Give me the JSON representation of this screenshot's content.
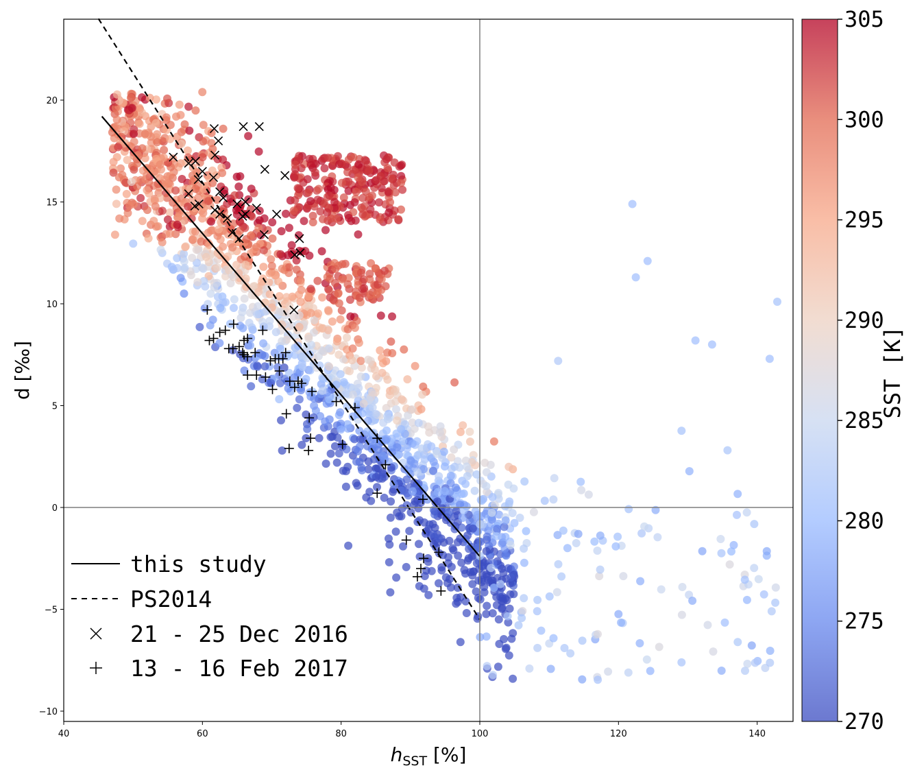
{
  "chart_data": {
    "type": "scatter",
    "xlabel_main": "h",
    "xlabel_sub": "SST",
    "xlabel_unit": " [%]",
    "ylabel": "d [‰]",
    "xlim": [
      40,
      145
    ],
    "ylim": [
      -10.5,
      24
    ],
    "xticks": [
      40,
      60,
      80,
      100,
      120,
      140
    ],
    "yticks": [
      -10,
      -5,
      0,
      5,
      10,
      15,
      20
    ],
    "reference_lines": {
      "x": 100,
      "y": 0
    },
    "grid": false,
    "colorbar": {
      "label": "SST [K]",
      "range": [
        270,
        305
      ],
      "ticks": [
        270,
        275,
        280,
        285,
        290,
        295,
        300,
        305
      ],
      "colormap": "coolwarm",
      "colors": [
        "#3b4cc0",
        "#6788ee",
        "#9abbff",
        "#c9d7f0",
        "#edd1c2",
        "#f7a889",
        "#e26952",
        "#b40426"
      ]
    },
    "fit_lines": [
      {
        "name": "this study",
        "style": "solid",
        "x": [
          45.5,
          100
        ],
        "y": [
          19.2,
          -2.4
        ]
      },
      {
        "name": "PS2014",
        "style": "dashed",
        "x": [
          45,
          100
        ],
        "y": [
          24,
          -5.5
        ]
      }
    ],
    "legend": {
      "placement": "bottom-left",
      "entries": [
        {
          "label": "this study",
          "marker": "solid-line"
        },
        {
          "label": "PS2014",
          "marker": "dashed-line"
        },
        {
          "label": "21 - 25 Dec 2016",
          "marker": "x"
        },
        {
          "label": "13 - 16 Feb 2017",
          "marker": "+"
        }
      ]
    },
    "series": [
      {
        "name": "21 - 25 Dec 2016",
        "marker": "x",
        "points": [
          [
            55.8,
            17.2
          ],
          [
            58,
            16.9
          ],
          [
            59,
            17
          ],
          [
            60,
            16.5
          ],
          [
            59.4,
            16.1
          ],
          [
            58,
            15.4
          ],
          [
            59.5,
            14.9
          ],
          [
            58.9,
            14.8
          ],
          [
            61.7,
            18.6
          ],
          [
            62.3,
            18
          ],
          [
            61.8,
            17.3
          ],
          [
            61.6,
            16.2
          ],
          [
            62.5,
            15.5
          ],
          [
            63,
            15.2
          ],
          [
            61.8,
            14.6
          ],
          [
            62.5,
            14.4
          ],
          [
            63.6,
            14.2
          ],
          [
            64.3,
            13.5
          ],
          [
            65.3,
            13.2
          ],
          [
            65.9,
            18.7
          ],
          [
            68.2,
            18.7
          ],
          [
            65,
            14.9
          ],
          [
            66.2,
            15
          ],
          [
            65.8,
            14.3
          ],
          [
            66.2,
            14.4
          ],
          [
            67.8,
            14.7
          ],
          [
            69,
            16.6
          ],
          [
            68.9,
            13.4
          ],
          [
            70.7,
            14.4
          ],
          [
            71.9,
            16.3
          ],
          [
            73.3,
            12.4
          ],
          [
            74.1,
            12.5
          ],
          [
            74,
            13.2
          ],
          [
            73.2,
            9.7
          ]
        ]
      },
      {
        "name": "13 - 16 Feb 2017",
        "marker": "+",
        "points": [
          [
            60.7,
            9.7
          ],
          [
            61,
            8.2
          ],
          [
            61.6,
            8.3
          ],
          [
            62.5,
            8.6
          ],
          [
            63.3,
            8.7
          ],
          [
            64.5,
            9
          ],
          [
            63.8,
            7.8
          ],
          [
            64.4,
            7.8
          ],
          [
            65.3,
            7.9
          ],
          [
            65.8,
            7.6
          ],
          [
            66,
            7.5
          ],
          [
            66.5,
            7.4
          ],
          [
            67.6,
            7.6
          ],
          [
            66,
            8.2
          ],
          [
            66.5,
            8.3
          ],
          [
            66.5,
            6.5
          ],
          [
            67.8,
            6.5
          ],
          [
            69.1,
            6.4
          ],
          [
            68.7,
            8.7
          ],
          [
            69.8,
            7.2
          ],
          [
            70.5,
            7.3
          ],
          [
            71,
            7.3
          ],
          [
            70.1,
            5.8
          ],
          [
            71.6,
            7.3
          ],
          [
            71.1,
            6.7
          ],
          [
            72,
            7.6
          ],
          [
            72.6,
            6.2
          ],
          [
            73.3,
            5.9
          ],
          [
            73.8,
            6.2
          ],
          [
            74.3,
            6.1
          ],
          [
            75.8,
            5.7
          ],
          [
            72.1,
            4.6
          ],
          [
            75.4,
            4.4
          ],
          [
            72.5,
            2.9
          ],
          [
            75.3,
            2.8
          ],
          [
            75.6,
            3.4
          ],
          [
            79.3,
            5.2
          ],
          [
            82,
            4.9
          ],
          [
            80.2,
            3.1
          ],
          [
            85.2,
            3.4
          ],
          [
            86.4,
            2.1
          ],
          [
            85.2,
            0.7
          ],
          [
            91.8,
            0.4
          ],
          [
            89.4,
            -1.6
          ],
          [
            91.9,
            -2.5
          ],
          [
            91.5,
            -3
          ],
          [
            91,
            -3.4
          ],
          [
            94.1,
            -2.2
          ],
          [
            94.4,
            -4.1
          ]
        ]
      }
    ]
  }
}
